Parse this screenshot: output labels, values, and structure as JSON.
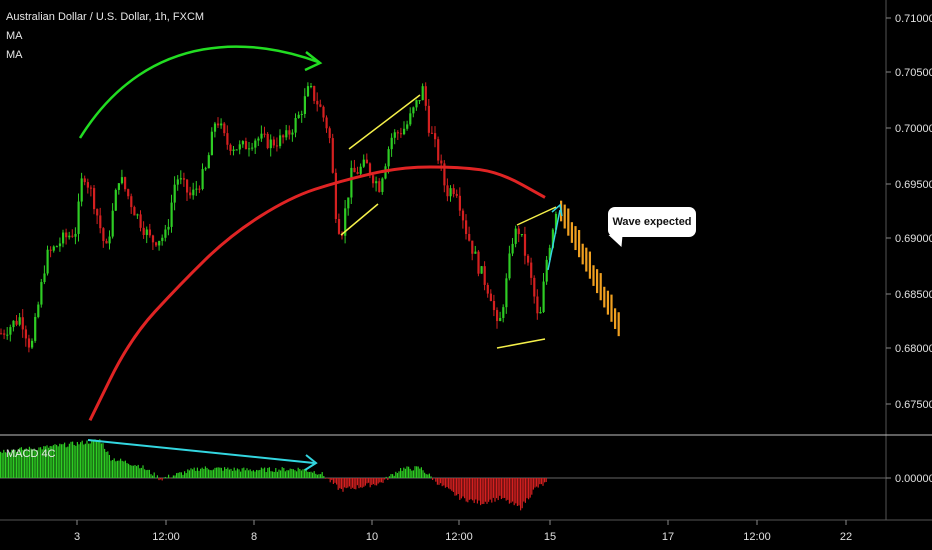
{
  "header": {
    "title": "Australian Dollar / U.S. Dollar, 1h, FXCM",
    "indicators": [
      "MA",
      "MA"
    ]
  },
  "callout": {
    "text": "Wave expected"
  },
  "macd": {
    "label": "MACD 4C",
    "zero_label": "0.00000"
  },
  "colors": {
    "bull": "#2ecc24",
    "bear": "#d42020",
    "ma": "#e02424",
    "projection": "#f0a020",
    "arrow_green": "#22dd22",
    "arrow_cyan": "#33d6e0",
    "pattern": "#f5f04a"
  },
  "chart_data": {
    "type": "candlestick",
    "title": "Australian Dollar / U.S. Dollar, 1h, FXCM",
    "y_ticks": [
      "0.71000",
      "0.70500",
      "0.70000",
      "0.69500",
      "0.69000",
      "0.68500",
      "0.68000",
      "0.67500"
    ],
    "ylim": [
      0.6717,
      0.7118
    ],
    "x_ticks": [
      "3",
      "12:00",
      "8",
      "10",
      "12:00",
      "15",
      "17",
      "12:00",
      "22"
    ],
    "price_path": [
      [
        0,
        0.681
      ],
      [
        20,
        0.6825
      ],
      [
        30,
        0.6795
      ],
      [
        45,
        0.688
      ],
      [
        60,
        0.6895
      ],
      [
        75,
        0.6905
      ],
      [
        82,
        0.696
      ],
      [
        92,
        0.6935
      ],
      [
        105,
        0.6885
      ],
      [
        118,
        0.6955
      ],
      [
        135,
        0.692
      ],
      [
        150,
        0.6895
      ],
      [
        165,
        0.69
      ],
      [
        175,
        0.6955
      ],
      [
        190,
        0.6935
      ],
      [
        205,
        0.696
      ],
      [
        215,
        0.701
      ],
      [
        225,
        0.6985
      ],
      [
        240,
        0.698
      ],
      [
        255,
        0.699
      ],
      [
        270,
        0.6985
      ],
      [
        285,
        0.699
      ],
      [
        298,
        0.701
      ],
      [
        308,
        0.7035
      ],
      [
        318,
        0.702
      ],
      [
        328,
        0.6995
      ],
      [
        335,
        0.692
      ],
      [
        340,
        0.69
      ],
      [
        350,
        0.6955
      ],
      [
        365,
        0.6965
      ],
      [
        378,
        0.6945
      ],
      [
        390,
        0.699
      ],
      [
        405,
        0.7
      ],
      [
        415,
        0.702
      ],
      [
        422,
        0.7035
      ],
      [
        428,
        0.7
      ],
      [
        438,
        0.697
      ],
      [
        445,
        0.694
      ],
      [
        455,
        0.6945
      ],
      [
        465,
        0.6905
      ],
      [
        478,
        0.687
      ],
      [
        490,
        0.6845
      ],
      [
        497,
        0.681
      ],
      [
        505,
        0.6855
      ],
      [
        512,
        0.69
      ],
      [
        518,
        0.6905
      ],
      [
        525,
        0.688
      ],
      [
        532,
        0.685
      ],
      [
        538,
        0.6815
      ],
      [
        545,
        0.6875
      ],
      [
        555,
        0.6925
      ]
    ],
    "ma_path": [
      [
        90,
        0.673
      ],
      [
        130,
        0.6805
      ],
      [
        180,
        0.6855
      ],
      [
        230,
        0.69
      ],
      [
        290,
        0.6935
      ],
      [
        340,
        0.695
      ],
      [
        400,
        0.6963
      ],
      [
        460,
        0.6963
      ],
      [
        500,
        0.6958
      ],
      [
        545,
        0.6935
      ]
    ],
    "projection": {
      "from_x": 560,
      "to_x": 620,
      "start": 0.6925,
      "end": 0.6815
    },
    "macd_series": {
      "ylim": [
        -0.0045,
        0.0045
      ],
      "zero": 0.0
    }
  }
}
